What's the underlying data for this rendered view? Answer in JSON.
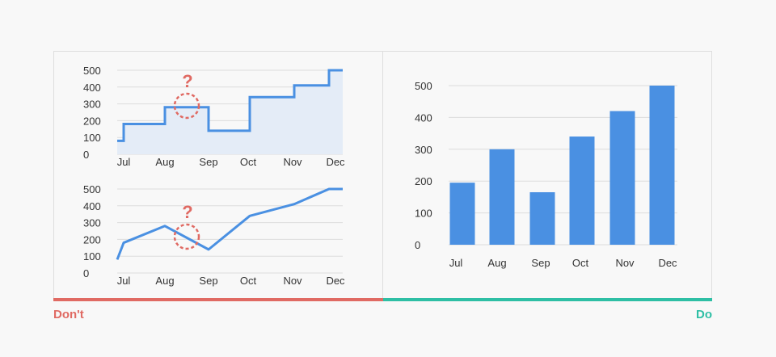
{
  "footer": {
    "dont_label": "Don't",
    "do_label": "Do",
    "dont_color": "#e06a63",
    "do_color": "#2ebfa5"
  },
  "colors": {
    "series": "#4a90e2",
    "area_fill": "#e4ecf7",
    "question": "#e06a63",
    "grid": "#dcdcdc"
  },
  "annotations": {
    "question_mark": "?"
  },
  "chart_data": [
    {
      "id": "dont-step",
      "type": "line",
      "style": "step",
      "title": "",
      "categories": [
        "Jul",
        "Aug",
        "Sep",
        "Oct",
        "Nov",
        "Dec"
      ],
      "series": [
        {
          "values": [
            180,
            280,
            140,
            340,
            410,
            500
          ]
        }
      ],
      "yticks": [
        0,
        100,
        200,
        300,
        400,
        500
      ],
      "ylim": [
        0,
        500
      ],
      "start_value": 80,
      "filled": true,
      "grid": true
    },
    {
      "id": "dont-line",
      "type": "line",
      "title": "",
      "categories": [
        "Jul",
        "Aug",
        "Sep",
        "Oct",
        "Nov",
        "Dec"
      ],
      "series": [
        {
          "values": [
            180,
            280,
            140,
            340,
            410,
            500
          ]
        }
      ],
      "yticks": [
        0,
        100,
        200,
        300,
        400,
        500
      ],
      "ylim": [
        0,
        500
      ],
      "start_value": 80,
      "grid": true
    },
    {
      "id": "do-bar",
      "type": "bar",
      "title": "",
      "categories": [
        "Jul",
        "Aug",
        "Sep",
        "Oct",
        "Nov",
        "Dec"
      ],
      "values": [
        195,
        300,
        165,
        340,
        420,
        500
      ],
      "yticks": [
        0,
        100,
        200,
        300,
        400,
        500
      ],
      "ylim": [
        0,
        500
      ],
      "grid": true
    }
  ]
}
